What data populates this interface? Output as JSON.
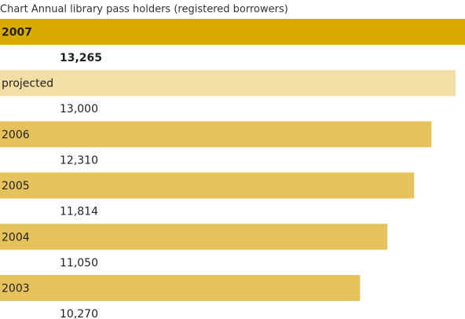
{
  "chart_data": {
    "type": "bar",
    "orientation": "horizontal",
    "title": "Chart Annual library pass holders (registered borrowers)",
    "categories": [
      "2007",
      "projected",
      "2006",
      "2005",
      "2004",
      "2003"
    ],
    "values": [
      13265,
      13000,
      12310,
      11814,
      11050,
      10270
    ],
    "value_labels": [
      "13,265",
      "13,000",
      "12,310",
      "11,814",
      "11,050",
      "10,270"
    ],
    "colors": [
      "#d9ab00",
      "#f3dfa6",
      "#e6c25c",
      "#e6c25c",
      "#e6c25c",
      "#e6c25c"
    ],
    "xlim": [
      0,
      13265
    ]
  }
}
